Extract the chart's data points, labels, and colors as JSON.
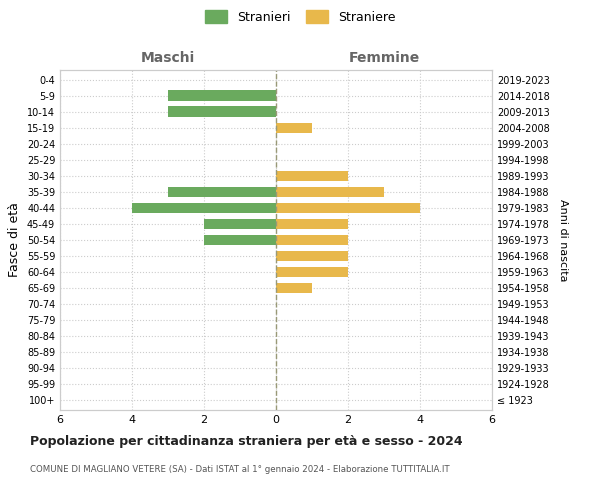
{
  "age_groups": [
    "100+",
    "95-99",
    "90-94",
    "85-89",
    "80-84",
    "75-79",
    "70-74",
    "65-69",
    "60-64",
    "55-59",
    "50-54",
    "45-49",
    "40-44",
    "35-39",
    "30-34",
    "25-29",
    "20-24",
    "15-19",
    "10-14",
    "5-9",
    "0-4"
  ],
  "birth_years": [
    "≤ 1923",
    "1924-1928",
    "1929-1933",
    "1934-1938",
    "1939-1943",
    "1944-1948",
    "1949-1953",
    "1954-1958",
    "1959-1963",
    "1964-1968",
    "1969-1973",
    "1974-1978",
    "1979-1983",
    "1984-1988",
    "1989-1993",
    "1994-1998",
    "1999-2003",
    "2004-2008",
    "2009-2013",
    "2014-2018",
    "2019-2023"
  ],
  "maschi": [
    0,
    0,
    0,
    0,
    0,
    0,
    0,
    0,
    0,
    0,
    2,
    2,
    4,
    3,
    0,
    0,
    0,
    0,
    3,
    3,
    0
  ],
  "femmine": [
    0,
    0,
    0,
    0,
    0,
    0,
    0,
    1,
    2,
    2,
    2,
    2,
    4,
    3,
    2,
    0,
    0,
    1,
    0,
    0,
    0
  ],
  "color_maschi": "#6aaa5e",
  "color_femmine": "#e8b84b",
  "title": "Popolazione per cittadinanza straniera per età e sesso - 2024",
  "subtitle": "COMUNE DI MAGLIANO VETERE (SA) - Dati ISTAT al 1° gennaio 2024 - Elaborazione TUTTITALIA.IT",
  "ylabel_left": "Fasce di età",
  "ylabel_right": "Anni di nascita",
  "xlabel_maschi": "Maschi",
  "xlabel_femmine": "Femmine",
  "legend_stranieri": "Stranieri",
  "legend_straniere": "Straniere",
  "xlim": 6,
  "background_color": "#ffffff",
  "grid_color": "#cccccc",
  "spine_color": "#cccccc",
  "centerline_color": "#999977"
}
